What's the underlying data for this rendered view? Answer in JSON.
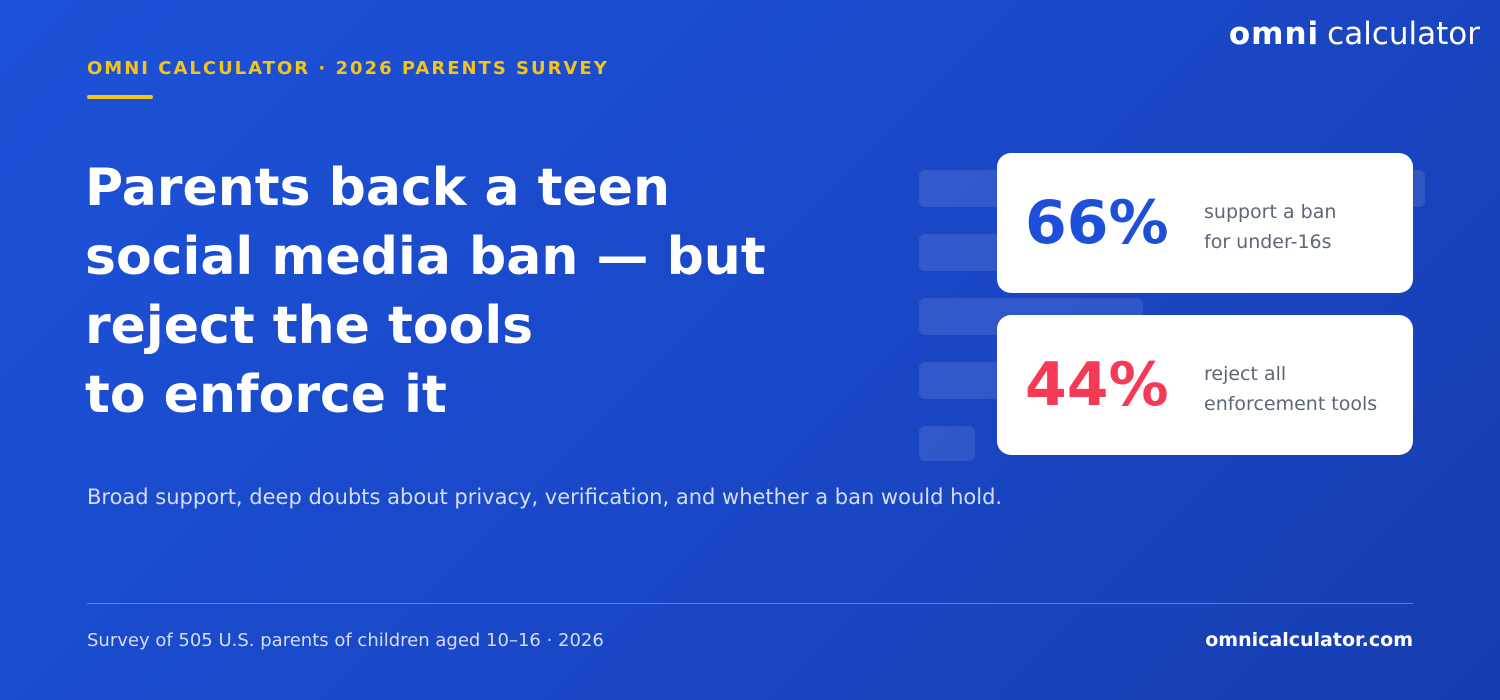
{
  "logo": {
    "brand": "omni",
    "product": "calculator"
  },
  "eyebrow": "OMNI CALCULATOR · 2026 PARENTS SURVEY",
  "headline": {
    "lines": [
      "Parents back a teen",
      "social media ban — but",
      "reject the tools",
      "to enforce it"
    ]
  },
  "stats": [
    {
      "figure": "66%",
      "label_lines": [
        "support a ban",
        "for under-16s"
      ]
    },
    {
      "figure": "44%",
      "label_lines": [
        "reject all",
        "enforcement tools"
      ]
    }
  ],
  "subtitle": "Broad support, deep doubts about privacy, verification, and whether a ban would hold.",
  "footer": {
    "source": "Survey of 505 U.S. parents of children aged 10–16 · 2026",
    "site": "omnicalculator.com"
  }
}
